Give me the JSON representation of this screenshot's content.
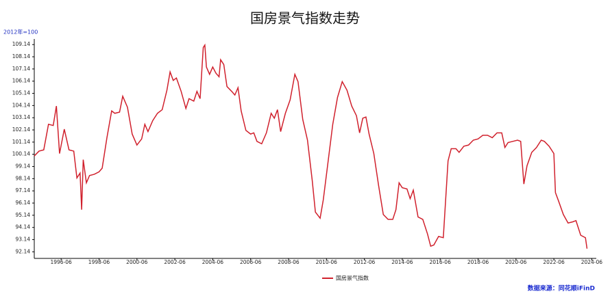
{
  "chart_data": {
    "type": "line",
    "title": "国房景气指数走势",
    "y_unit_label": "2012年=100",
    "source": "数据来源：同花顺iFinD",
    "x": [
      "1995-01",
      "1995-04",
      "1995-07",
      "1995-10",
      "1996-01",
      "1996-03",
      "1996-05",
      "1996-08",
      "1996-11",
      "1997-02",
      "1997-04",
      "1997-06",
      "1997-07",
      "1997-08",
      "1997-10",
      "1997-12",
      "1998-03",
      "1998-06",
      "1998-08",
      "1998-11",
      "1999-02",
      "1999-04",
      "1999-07",
      "1999-09",
      "1999-12",
      "2000-03",
      "2000-06",
      "2000-09",
      "2000-11",
      "2001-01",
      "2001-04",
      "2001-07",
      "2001-10",
      "2002-01",
      "2002-03",
      "2002-05",
      "2002-07",
      "2002-10",
      "2003-01",
      "2003-03",
      "2003-06",
      "2003-08",
      "2003-10",
      "2003-12",
      "2004-01",
      "2004-02",
      "2004-04",
      "2004-06",
      "2004-08",
      "2004-10",
      "2004-11",
      "2005-01",
      "2005-03",
      "2005-06",
      "2005-08",
      "2005-10",
      "2005-12",
      "2006-03",
      "2006-06",
      "2006-08",
      "2006-10",
      "2007-01",
      "2007-04",
      "2007-07",
      "2007-09",
      "2007-11",
      "2008-01",
      "2008-04",
      "2008-07",
      "2008-10",
      "2008-12",
      "2009-03",
      "2009-06",
      "2009-09",
      "2009-11",
      "2010-02",
      "2010-04",
      "2010-07",
      "2010-10",
      "2011-01",
      "2011-04",
      "2011-07",
      "2011-10",
      "2012-01",
      "2012-03",
      "2012-05",
      "2012-07",
      "2012-09",
      "2012-12",
      "2013-03",
      "2013-06",
      "2013-09",
      "2013-12",
      "2014-02",
      "2014-04",
      "2014-06",
      "2014-09",
      "2014-11",
      "2015-01",
      "2015-04",
      "2015-07",
      "2015-10",
      "2015-12",
      "2016-02",
      "2016-05",
      "2016-08",
      "2016-11",
      "2017-01",
      "2017-04",
      "2017-06",
      "2017-09",
      "2017-12",
      "2018-03",
      "2018-06",
      "2018-09",
      "2018-12",
      "2019-03",
      "2019-06",
      "2019-09",
      "2019-11",
      "2020-01",
      "2020-04",
      "2020-07",
      "2020-09",
      "2020-11",
      "2021-01",
      "2021-04",
      "2021-07",
      "2021-10",
      "2021-12",
      "2022-03",
      "2022-06",
      "2022-07",
      "2022-09",
      "2022-12",
      "2023-03",
      "2023-06",
      "2023-08",
      "2023-11",
      "2024-02",
      "2024-03"
    ],
    "series": [
      {
        "name": "国房景气指数",
        "color": "#d0202c",
        "values": [
          100.0,
          100.4,
          100.5,
          102.6,
          102.5,
          104.1,
          100.2,
          102.2,
          100.5,
          100.4,
          98.2,
          98.6,
          95.6,
          99.7,
          97.8,
          98.4,
          98.5,
          98.7,
          99.0,
          101.5,
          103.7,
          103.5,
          103.6,
          104.9,
          104.0,
          101.8,
          100.9,
          101.4,
          102.6,
          102.0,
          102.9,
          103.5,
          103.8,
          105.4,
          106.9,
          106.2,
          106.4,
          105.3,
          103.9,
          104.7,
          104.5,
          105.3,
          104.7,
          108.9,
          109.1,
          107.3,
          106.7,
          107.3,
          106.8,
          106.5,
          107.9,
          107.5,
          105.7,
          105.3,
          105.0,
          105.6,
          103.7,
          102.1,
          101.8,
          101.9,
          101.2,
          101.0,
          101.9,
          103.5,
          103.1,
          103.8,
          102.0,
          103.5,
          104.6,
          106.7,
          106.1,
          103.0,
          101.3,
          98.0,
          95.4,
          94.9,
          96.4,
          99.5,
          102.6,
          104.8,
          106.1,
          105.4,
          104.1,
          103.3,
          101.9,
          103.1,
          103.2,
          101.8,
          100.2,
          97.6,
          95.2,
          94.8,
          94.8,
          95.6,
          97.8,
          97.4,
          97.3,
          96.5,
          97.2,
          95.0,
          94.8,
          93.6,
          92.6,
          92.7,
          93.4,
          93.3,
          99.6,
          100.6,
          100.6,
          100.3,
          100.8,
          100.9,
          101.3,
          101.4,
          101.7,
          101.7,
          101.5,
          101.9,
          101.9,
          100.7,
          101.1,
          101.2,
          101.3,
          101.2,
          97.7,
          99.2,
          100.3,
          100.7,
          101.3,
          101.2,
          100.8,
          100.2,
          97.0,
          96.3,
          95.2,
          94.5,
          94.6,
          94.7,
          93.5,
          93.3,
          92.4
        ]
      }
    ],
    "xlim": [
      "1995-01",
      "2024-08"
    ],
    "xticks": [
      "1996-06",
      "1998-06",
      "2000-06",
      "2002-06",
      "2004-06",
      "2006-06",
      "2008-06",
      "2010-06",
      "2012-06",
      "2014-06",
      "2016-06",
      "2018-06",
      "2020-06",
      "2022-06",
      "2024-06"
    ],
    "ylim": [
      91.6,
      109.6
    ],
    "yticks": [
      92.14,
      93.14,
      94.14,
      95.14,
      96.14,
      97.14,
      98.14,
      99.14,
      100.14,
      101.14,
      102.14,
      103.14,
      104.14,
      105.14,
      106.14,
      107.14,
      108.14,
      109.14
    ],
    "grid": false
  }
}
